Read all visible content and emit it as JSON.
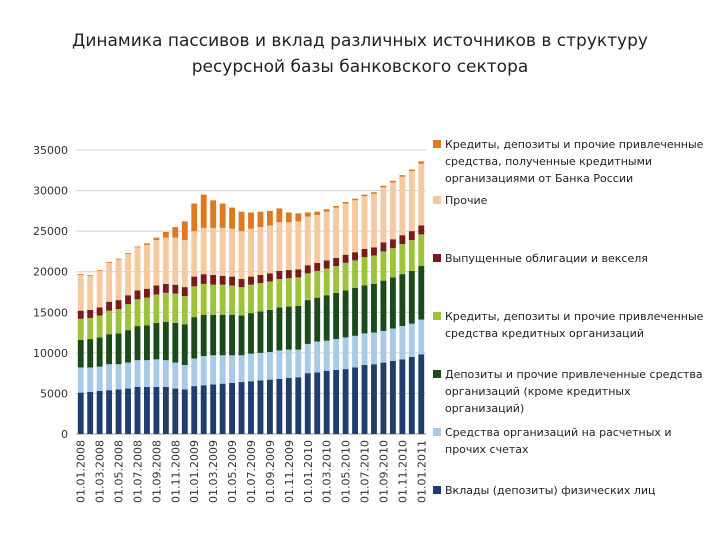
{
  "page": {
    "title_line1": "Динамика пассивов и вклад различных источников в структуру",
    "title_line2": "ресурсной базы банковского сектора"
  },
  "chart_data": {
    "type": "bar",
    "stacked": true,
    "title": "Динамика пассивов и вклад различных источников в структуру ресурсной базы банковского сектора",
    "xlabel": "",
    "ylabel": "",
    "ylim": [
      0,
      35000
    ],
    "yticks": [
      0,
      5000,
      10000,
      15000,
      20000,
      25000,
      30000,
      35000
    ],
    "grid": true,
    "legend_position": "right",
    "categories": [
      "01.01.2008",
      "01.02.2008",
      "01.03.2008",
      "01.04.2008",
      "01.05.2008",
      "01.06.2008",
      "01.07.2008",
      "01.08.2008",
      "01.09.2008",
      "01.10.2008",
      "01.11.2008",
      "01.12.2008",
      "01.01.2009",
      "01.02.2009",
      "01.03.2009",
      "01.04.2009",
      "01.05.2009",
      "01.06.2009",
      "01.07.2009",
      "01.08.2009",
      "01.09.2009",
      "01.10.2009",
      "01.11.2009",
      "01.12.2009",
      "01.01.2010",
      "01.02.2010",
      "01.03.2010",
      "01.04.2010",
      "01.05.2010",
      "01.06.2010",
      "01.07.2010",
      "01.08.2010",
      "01.09.2010",
      "01.10.2010",
      "01.11.2010",
      "01.12.2010",
      "01.01.2011"
    ],
    "tick_labels": [
      "01.01.2008",
      "01.03.2008",
      "01.05.2008",
      "01.07.2008",
      "01.09.2008",
      "01.11.2008",
      "01.01.2009",
      "01.03.2009",
      "01.05.2009",
      "01.07.2009",
      "01.09.2009",
      "01.11.2009",
      "01.01.2010",
      "01.03.2010",
      "01.05.2010",
      "01.07.2010",
      "01.09.2010",
      "01.11.2010",
      "01.01.2011"
    ],
    "series": [
      {
        "name": "Вклады (депозиты) физических лиц",
        "color": "#1f3d6e",
        "values": [
          5100,
          5200,
          5300,
          5400,
          5500,
          5600,
          5800,
          5800,
          5800,
          5800,
          5600,
          5500,
          5900,
          6000,
          6100,
          6200,
          6300,
          6400,
          6500,
          6600,
          6700,
          6800,
          6900,
          7000,
          7500,
          7600,
          7800,
          7900,
          8000,
          8200,
          8500,
          8600,
          8800,
          9000,
          9200,
          9500,
          9800
        ]
      },
      {
        "name": "Средства организаций на расчетных и прочих счетах",
        "color": "#a9c9e8",
        "values": [
          3100,
          3000,
          3000,
          3200,
          3100,
          3200,
          3300,
          3300,
          3400,
          3300,
          3200,
          3000,
          3400,
          3600,
          3600,
          3500,
          3400,
          3300,
          3400,
          3400,
          3400,
          3500,
          3500,
          3400,
          3600,
          3800,
          3700,
          3800,
          3900,
          3900,
          3900,
          3900,
          3900,
          4000,
          4100,
          4100,
          4300
        ]
      },
      {
        "name": "Депозиты и прочие привлеченные средства организаций (кроме кредитных организаций)",
        "color": "#1b4a1b",
        "values": [
          3400,
          3500,
          3600,
          3700,
          3800,
          4000,
          4200,
          4300,
          4500,
          4700,
          4900,
          5000,
          5100,
          5100,
          5000,
          5000,
          5000,
          4900,
          5000,
          5100,
          5200,
          5300,
          5300,
          5400,
          5400,
          5400,
          5600,
          5700,
          5800,
          5900,
          5900,
          6000,
          6200,
          6300,
          6400,
          6500,
          6600
        ]
      },
      {
        "name": "Кредиты, депозиты и прочие привлеченные средства кредитных организаций",
        "color": "#9dc33a",
        "values": [
          2600,
          2600,
          2700,
          2900,
          3000,
          3200,
          3300,
          3400,
          3500,
          3600,
          3600,
          3500,
          3800,
          3800,
          3700,
          3700,
          3600,
          3500,
          3500,
          3500,
          3500,
          3500,
          3500,
          3500,
          3300,
          3300,
          3300,
          3300,
          3400,
          3400,
          3500,
          3500,
          3600,
          3600,
          3700,
          3800,
          3900
        ]
      },
      {
        "name": "Выпущенные облигации и векселя",
        "color": "#7a1a1a",
        "values": [
          1000,
          1000,
          1000,
          1100,
          1100,
          1100,
          1100,
          1100,
          1100,
          1100,
          1100,
          1100,
          1200,
          1200,
          1200,
          1100,
          1100,
          1000,
          1000,
          1000,
          1000,
          1000,
          1000,
          1000,
          1000,
          1000,
          1000,
          1000,
          1000,
          1000,
          1000,
          1000,
          1100,
          1100,
          1100,
          1100,
          1100
        ]
      },
      {
        "name": "Прочие",
        "color": "#f6caa0",
        "values": [
          4400,
          4200,
          4500,
          4800,
          5000,
          5100,
          5300,
          5400,
          5600,
          5700,
          5800,
          5800,
          5600,
          5700,
          5800,
          5900,
          5900,
          5900,
          5900,
          5900,
          5900,
          6000,
          5900,
          5900,
          6000,
          5900,
          6000,
          6200,
          6300,
          6400,
          6500,
          6600,
          6800,
          7000,
          7200,
          7400,
          7600
        ]
      },
      {
        "name": "Кредиты, депозиты и прочие привлеченные средства, полученные кредитными организациями от Банка России",
        "color": "#e07820",
        "values": [
          100,
          100,
          100,
          100,
          100,
          100,
          100,
          200,
          300,
          700,
          1300,
          2300,
          3400,
          4100,
          3400,
          3000,
          2600,
          2400,
          2000,
          1900,
          1800,
          1700,
          1200,
          1000,
          500,
          400,
          300,
          200,
          200,
          200,
          200,
          200,
          200,
          200,
          200,
          200,
          300
        ]
      }
    ]
  },
  "legend": [
    {
      "color": "#e07820",
      "lines": [
        "Кредиты, депозиты и прочие привлеченные",
        "средства, полученные кредитными",
        "организациями от Банка России"
      ]
    },
    {
      "color": "#f6caa0",
      "lines": [
        "Прочие"
      ]
    },
    {
      "color": "#7a1a1a",
      "lines": [
        "Выпущенные облигации и векселя"
      ]
    },
    {
      "color": "#9dc33a",
      "lines": [
        "Кредиты, депозиты и прочие привлеченные",
        "средства кредитных организаций"
      ]
    },
    {
      "color": "#1b4a1b",
      "lines": [
        "Депозиты и прочие привлеченные средства",
        "организаций (кроме кредитных",
        "организаций)"
      ]
    },
    {
      "color": "#a9c9e8",
      "lines": [
        "Средства организаций на расчетных и",
        "прочих счетах"
      ]
    },
    {
      "color": "#1f3d6e",
      "lines": [
        "Вклады (депозиты) физических лиц"
      ]
    }
  ]
}
